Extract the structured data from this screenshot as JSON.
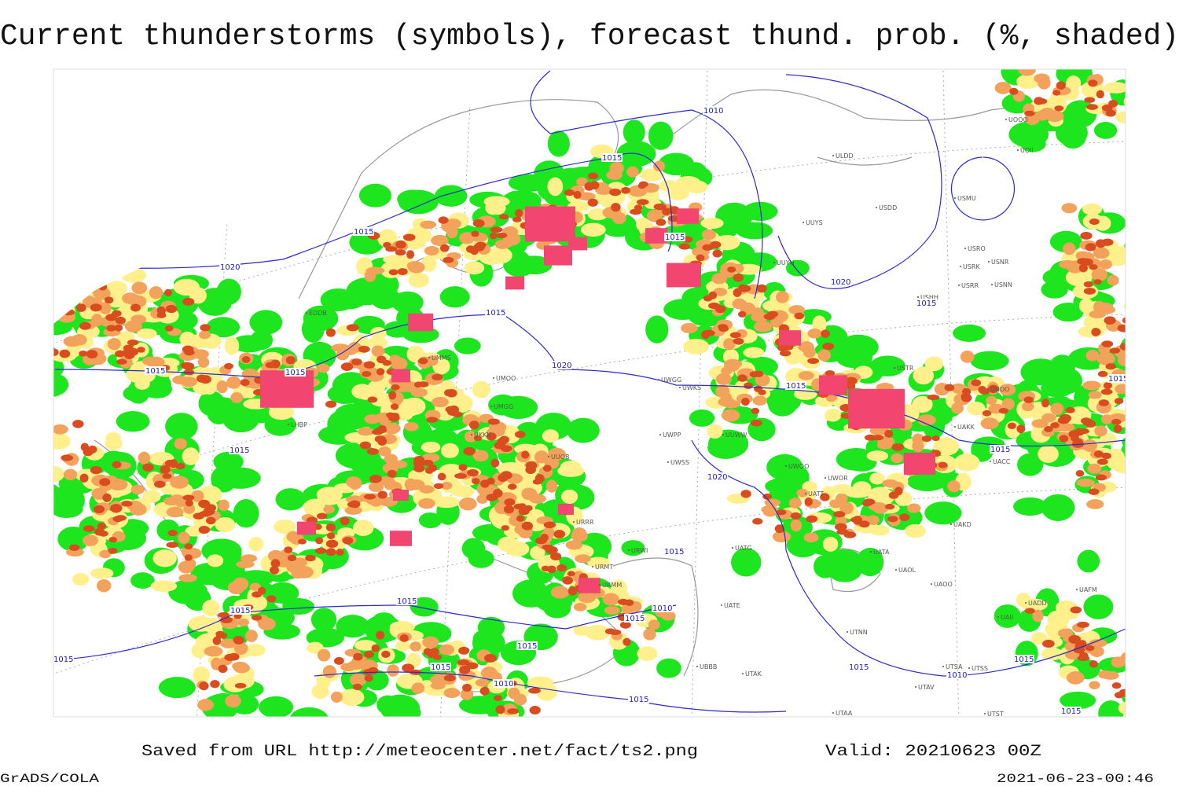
{
  "title": "Current thunderstorms (symbols), forecast thund. prob. (%, shaded)",
  "footer": {
    "source": "Saved from URL http://meteocenter.net/fact/ts2.png",
    "valid": "Valid: 20210623 00Z",
    "software": "GrADS/COLA",
    "timestamp": "2021-06-23-00:46"
  },
  "stations": [
    "ULDD",
    "USDD",
    "UUYS",
    "UUYH",
    "USMU",
    "USRO",
    "USRK",
    "USNR",
    "USRR",
    "USNN",
    "USHH",
    "USTR",
    "UNOO",
    "UOOO",
    "UOII",
    "UAKK",
    "UACC",
    "UAKD",
    "UATA",
    "UAOL",
    "UAOO",
    "UATG",
    "UATE",
    "UATT",
    "UWOR",
    "UWOO",
    "UTNN",
    "UTAK",
    "UBBB",
    "UTSA",
    "UTSS",
    "UTAV",
    "UTAA",
    "UTST",
    "UAII",
    "UAFM",
    "UADD",
    "URMT",
    "URMM",
    "URWI",
    "URRR",
    "UKKK",
    "UMMS",
    "UMOO",
    "UMGG",
    "UUOB",
    "UWKS",
    "UWGG",
    "UWPP",
    "UUWW",
    "UWSS",
    "EDDB",
    "LHBP"
  ],
  "isobar_labels": [
    1010,
    1015,
    1015,
    1020,
    1015,
    1015,
    1020,
    1015,
    1015,
    1015,
    1020,
    1015,
    1015,
    1020,
    1015,
    1015,
    1015,
    1015,
    1010,
    1015,
    1015,
    1015,
    1015,
    1010,
    1015,
    1010,
    1015,
    1015,
    1015,
    1015
  ]
}
